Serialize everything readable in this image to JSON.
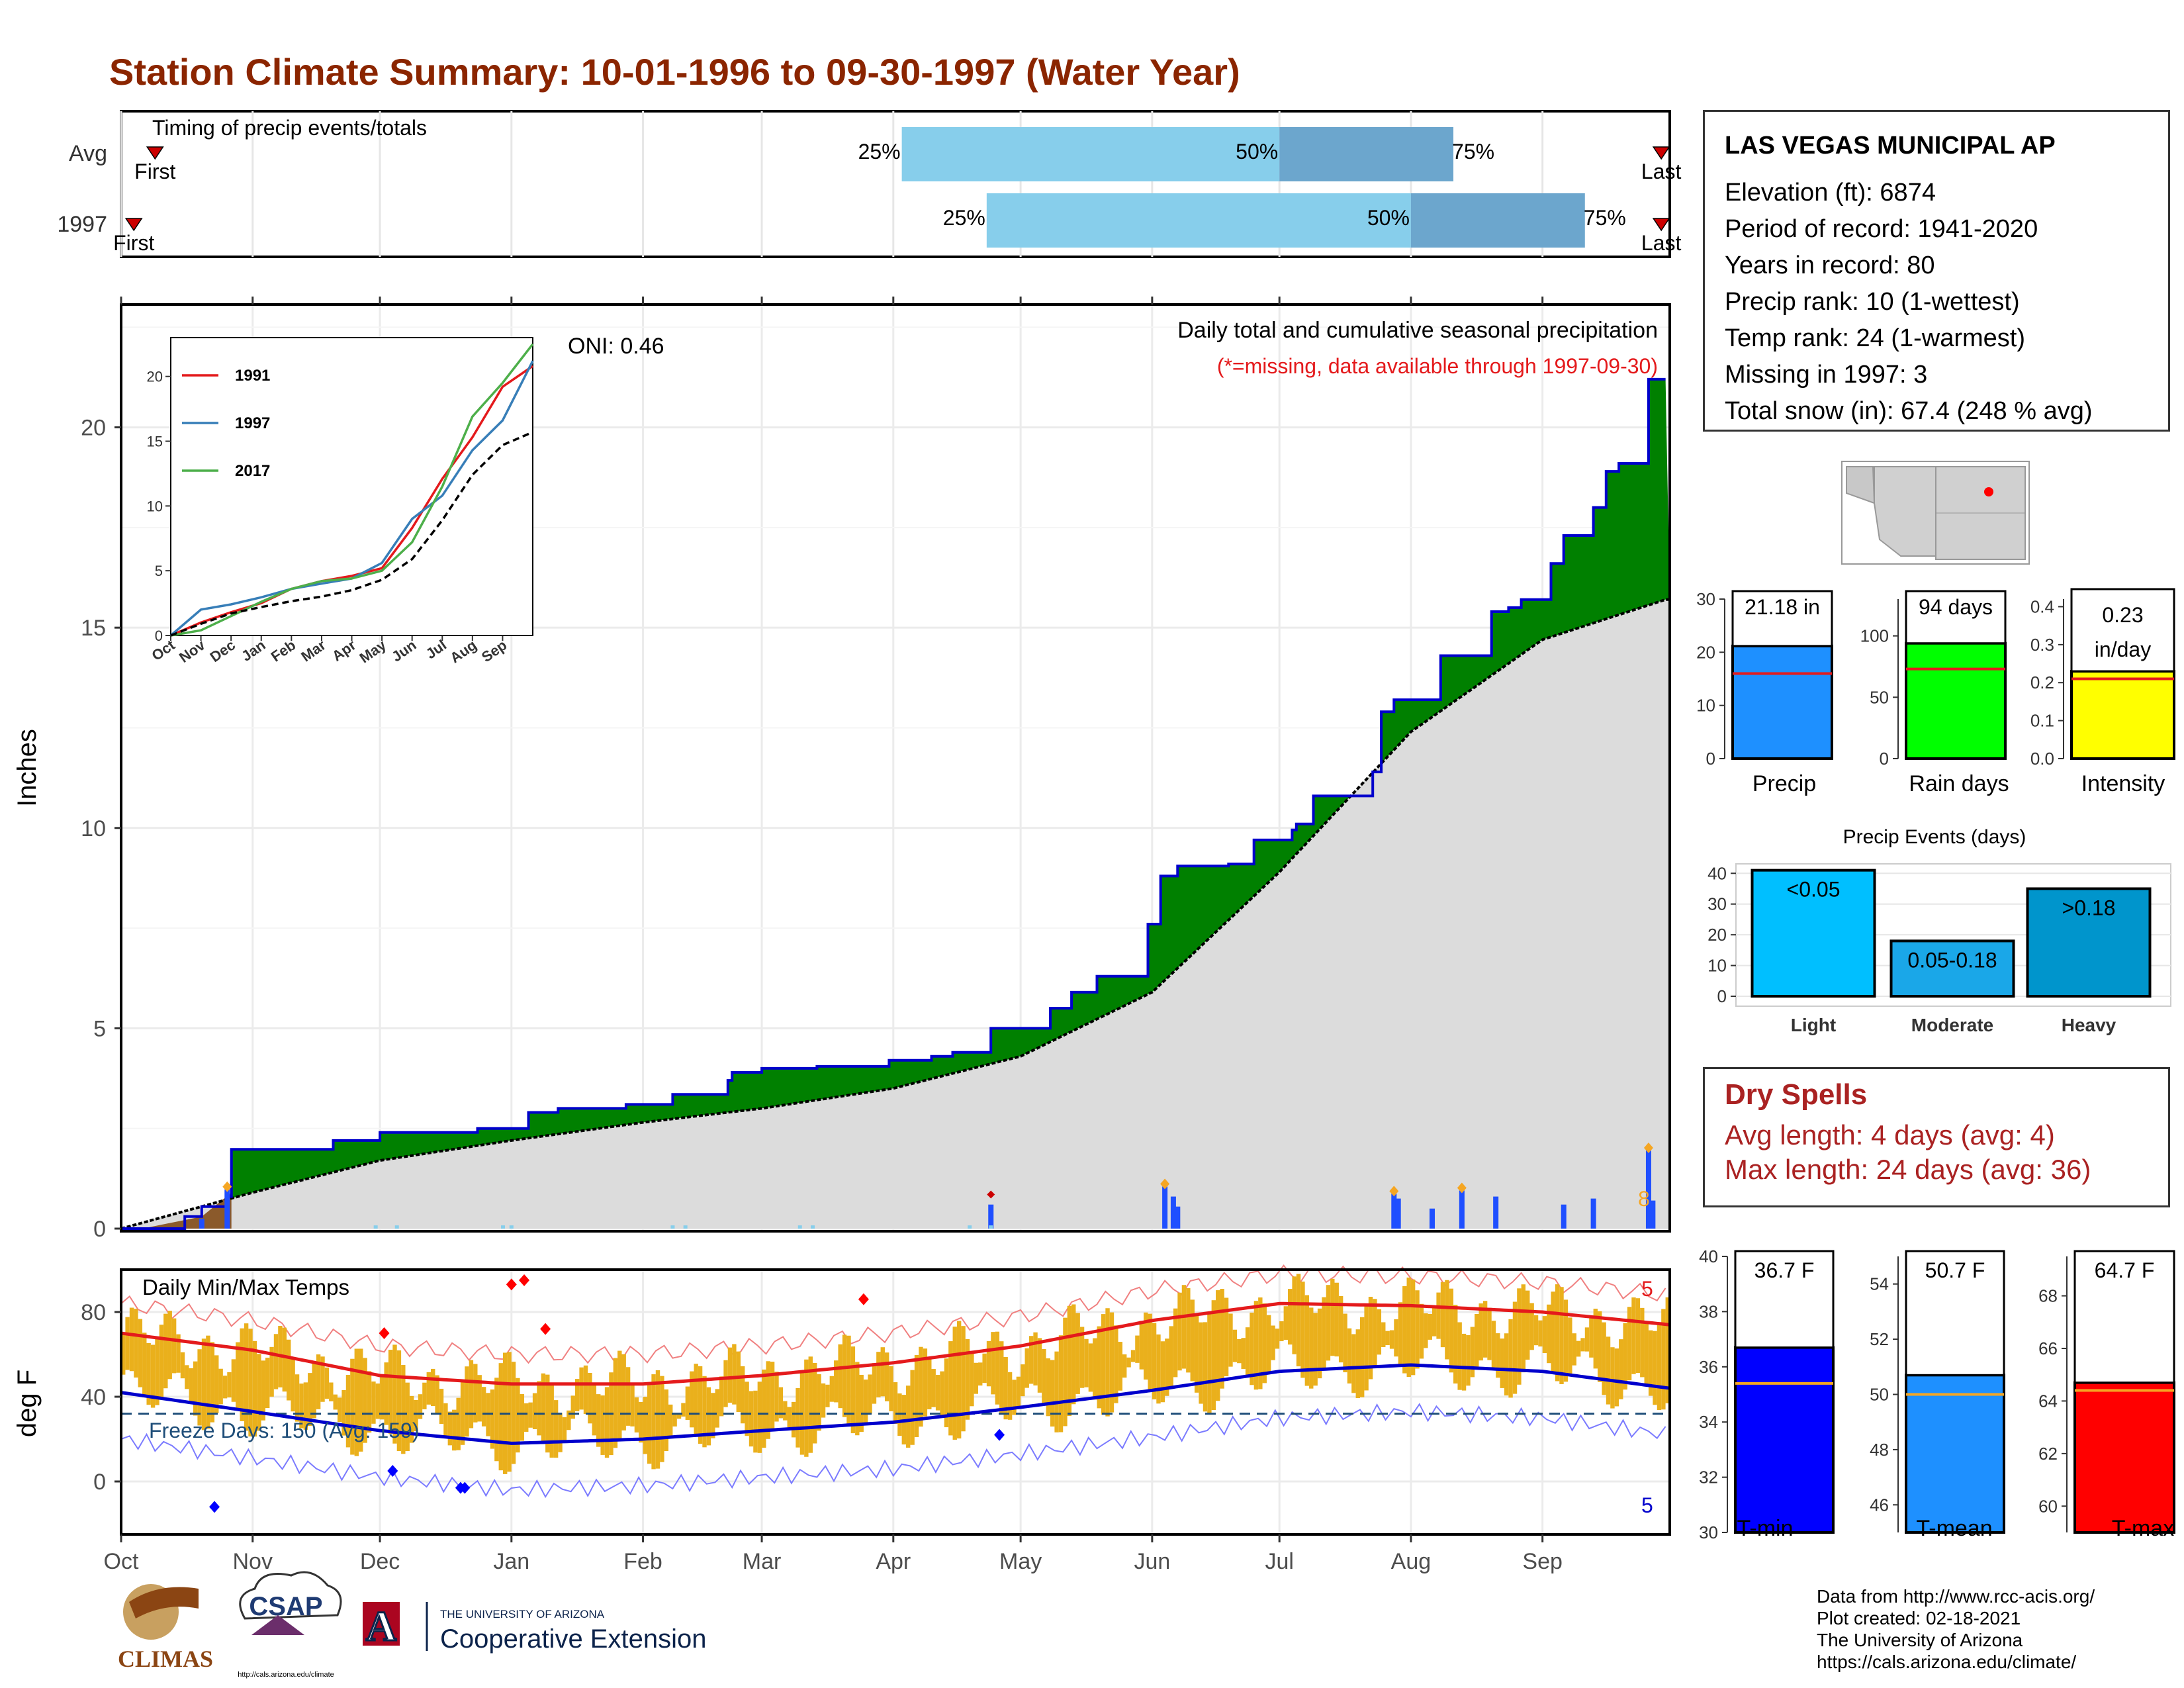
{
  "title": "Station Climate Summary: 10-01-1996 to 09-30-1997 (Water Year)",
  "colors": {
    "title": "#8B2500",
    "cum_obs_fill": "#008000",
    "cum_obs_line": "#0000CC",
    "cum_avg_fill": "#DCDCDC",
    "precip_bar": "#1f4fff",
    "temp_bar": "#EAB01C",
    "avg_max": "#E41A1C",
    "avg_min": "#0000CC",
    "pct_light": "#87CEEB",
    "pct_dark": "#6CA6CD"
  },
  "timing": {
    "title": "Timing of precip events/totals",
    "rows": [
      {
        "label": "Avg",
        "first": "First",
        "last": "Last",
        "p25": "25%",
        "p50": "50%",
        "p75": "75%"
      },
      {
        "label": "1997",
        "first": "First",
        "last": "Last",
        "p25": "25%",
        "p50": "50%",
        "p75": "75%"
      }
    ]
  },
  "precip_panel": {
    "ylabel": "Inches",
    "oni": "ONI: 0.46",
    "heading": "Daily total and cumulative seasonal precipitation",
    "note": "(*=missing, data available through 1997-09-30)",
    "count_label": "8",
    "yticks": [
      "0",
      "5",
      "10",
      "15",
      "20"
    ]
  },
  "inset": {
    "legend": [
      "1991",
      "1997",
      "2017"
    ],
    "legend_colors": [
      "#E41A1C",
      "#377EB8",
      "#4DAF4A"
    ],
    "yticks": [
      "0",
      "5",
      "10",
      "15",
      "20"
    ],
    "xticks": [
      "Oct",
      "Nov",
      "Dec",
      "Jan",
      "Feb",
      "Mar",
      "Apr",
      "May",
      "Jun",
      "Jul",
      "Aug",
      "Sep"
    ]
  },
  "temp_panel": {
    "ylabel": "deg F",
    "heading": "Daily Min/Max Temps",
    "freeze": "Freeze Days: 150 (Avg: 159)",
    "max_count": "5",
    "min_count": "5",
    "yticks": [
      "0",
      "40",
      "80"
    ]
  },
  "months": [
    "Oct",
    "Nov",
    "Dec",
    "Jan",
    "Feb",
    "Mar",
    "Apr",
    "May",
    "Jun",
    "Jul",
    "Aug",
    "Sep"
  ],
  "station": {
    "name": "LAS VEGAS MUNICIPAL AP",
    "rows": [
      "Elevation (ft): 6874",
      "Period of record: 1941-2020",
      "Years in record: 80",
      "Precip rank: 10 (1-wettest)",
      "Temp rank: 24 (1-warmest)",
      "Missing in 1997: 3",
      "Total snow (in): 67.4 (248 % avg)"
    ]
  },
  "mini_bars": {
    "precip": {
      "label": "Precip",
      "value_text": "21.18 in",
      "ticks": [
        "0",
        "10",
        "20",
        "30"
      ]
    },
    "rain_days": {
      "label": "Rain days",
      "value_text": "94 days",
      "ticks": [
        "0",
        "50",
        "100"
      ]
    },
    "intensity": {
      "label": "Intensity",
      "value_text_1": "0.23",
      "value_text_2": "in/day",
      "ticks": [
        "0.0",
        "0.1",
        "0.2",
        "0.3",
        "0.4"
      ]
    }
  },
  "events": {
    "title": "Precip Events (days)",
    "ticks": [
      "0",
      "10",
      "20",
      "30",
      "40"
    ],
    "categories": [
      "Light",
      "Moderate",
      "Heavy"
    ],
    "bar_labels": [
      "<0.05",
      "0.05-0.18",
      ">0.18"
    ]
  },
  "dry_spells": {
    "title": "Dry Spells",
    "avg": "Avg length: 4 days (avg: 4)",
    "max": "Max length: 24 days (avg: 36)"
  },
  "temp_bars": {
    "tmin": {
      "label": "T-min",
      "value_text": "36.7 F",
      "ticks": [
        "30",
        "32",
        "34",
        "36",
        "38",
        "40"
      ]
    },
    "tmean": {
      "label": "T-mean",
      "value_text": "50.7 F",
      "ticks": [
        "46",
        "48",
        "50",
        "52",
        "54"
      ]
    },
    "tmax": {
      "label": "T-max",
      "value_text": "64.7 F",
      "ticks": [
        "60",
        "62",
        "64",
        "66",
        "68"
      ]
    }
  },
  "credits": [
    "Data from http://www.rcc-acis.org/",
    "Plot created: 02-18-2021",
    "The University of Arizona",
    "https://cals.arizona.edu/climate/"
  ],
  "logos": {
    "climas": "CLIMAS",
    "csap": "CSAP",
    "csap_url": "http://cals.arizona.edu/climate",
    "ua_small": "THE UNIVERSITY OF ARIZONA",
    "ua_big": "Cooperative Extension",
    "ua_letter": "A"
  },
  "chart_data": [
    {
      "type": "bar",
      "name": "timing",
      "categories": [
        "Avg",
        "1997"
      ],
      "series": [
        {
          "name": "25%",
          "values": [
            "1997-04-03",
            "1997-04-23"
          ]
        },
        {
          "name": "50%",
          "values": [
            "1997-07-01",
            "1997-08-01"
          ]
        },
        {
          "name": "75%",
          "values": [
            "1997-08-11",
            "1997-09-11"
          ]
        }
      ],
      "first": [
        "1996-10-09",
        "1996-10-04"
      ],
      "last": [
        "1997-09-29",
        "1997-09-29"
      ]
    },
    {
      "type": "area",
      "title": "Daily total and cumulative seasonal precipitation",
      "ylabel": "Inches",
      "ylim": [
        0,
        23
      ],
      "xlim": [
        "1996-10-01",
        "1997-09-30"
      ],
      "series": [
        {
          "name": "cumulative observed",
          "x": [
            "1996-10-01",
            "1996-10-16",
            "1996-10-20",
            "1996-10-26",
            "1996-10-27",
            "1996-11-20",
            "1996-12-01",
            "1996-12-24",
            "1997-01-05",
            "1997-01-12",
            "1997-01-28",
            "1997-02-08",
            "1997-02-21",
            "1997-02-22",
            "1997-03-01",
            "1997-03-14",
            "1997-03-31",
            "1997-04-10",
            "1997-04-15",
            "1997-04-24",
            "1997-05-08",
            "1997-05-13",
            "1997-05-19",
            "1997-05-31",
            "1997-06-03",
            "1997-06-07",
            "1997-06-19",
            "1997-06-25",
            "1997-07-04",
            "1997-07-05",
            "1997-07-09",
            "1997-07-23",
            "1997-07-25",
            "1997-07-28",
            "1997-08-08",
            "1997-08-20",
            "1997-08-24",
            "1997-08-27",
            "1997-09-03",
            "1997-09-06",
            "1997-09-13",
            "1997-09-16",
            "1997-09-19",
            "1997-09-26",
            "1997-09-30"
          ],
          "values": [
            0,
            0.3,
            0.55,
            0.8,
            1.98,
            2.2,
            2.4,
            2.5,
            2.9,
            3.0,
            3.1,
            3.35,
            3.7,
            3.9,
            4.0,
            4.05,
            4.2,
            4.3,
            4.4,
            5.0,
            5.5,
            5.9,
            6.3,
            7.6,
            8.8,
            9.05,
            9.1,
            9.7,
            9.95,
            10.1,
            10.8,
            11.4,
            12.9,
            13.2,
            14.3,
            15.4,
            15.5,
            15.7,
            16.6,
            17.3,
            18.0,
            18.9,
            19.1,
            21.2,
            21.2
          ]
        },
        {
          "name": "average cumulative",
          "x": [
            "1996-10-01",
            "1996-11-01",
            "1996-12-01",
            "1997-01-01",
            "1997-02-01",
            "1997-03-01",
            "1997-04-01",
            "1997-05-01",
            "1997-06-01",
            "1997-07-01",
            "1997-08-01",
            "1997-09-01",
            "1997-09-30"
          ],
          "values": [
            0,
            0.9,
            1.7,
            2.2,
            2.65,
            3.0,
            3.5,
            4.3,
            5.9,
            8.9,
            12.4,
            14.7,
            15.7
          ]
        }
      ],
      "daily_precip": {
        "x": [
          "1996-10-20",
          "1996-10-26",
          "1997-04-24",
          "1997-06-04",
          "1997-06-06",
          "1997-06-07",
          "1997-07-28",
          "1997-07-29",
          "1997-08-06",
          "1997-08-13",
          "1997-08-21",
          "1997-09-06",
          "1997-09-13",
          "1997-09-26",
          "1997-09-27"
        ],
        "values": [
          0.25,
          0.98,
          0.6,
          1.05,
          0.8,
          0.55,
          0.87,
          0.75,
          0.5,
          0.95,
          0.8,
          0.6,
          0.75,
          1.95,
          0.7
        ]
      }
    },
    {
      "type": "line",
      "name": "inset cumulative comparison",
      "ylim": [
        0,
        23
      ],
      "series": [
        {
          "name": "1991",
          "x": [
            "Oct",
            "Nov",
            "Dec",
            "Jan",
            "Feb",
            "Mar",
            "Apr",
            "May",
            "Jun",
            "Jul",
            "Aug",
            "Sep",
            "end"
          ],
          "values": [
            0,
            1.0,
            1.8,
            2.5,
            3.6,
            4.2,
            4.6,
            5.2,
            8.3,
            12.1,
            15.3,
            19.2,
            20.8
          ]
        },
        {
          "name": "1997",
          "x": [
            "Oct",
            "Nov",
            "Dec",
            "Jan",
            "Feb",
            "Mar",
            "Apr",
            "May",
            "Jun",
            "Jul",
            "Aug",
            "Sep",
            "end"
          ],
          "values": [
            0,
            2.0,
            2.4,
            2.95,
            3.6,
            4.0,
            4.4,
            5.6,
            9.0,
            10.8,
            14.3,
            16.6,
            21.2
          ]
        },
        {
          "name": "2017",
          "x": [
            "Oct",
            "Nov",
            "Dec",
            "Jan",
            "Feb",
            "Mar",
            "Apr",
            "May",
            "Jun",
            "Jul",
            "Aug",
            "Sep",
            "end"
          ],
          "values": [
            0,
            0.4,
            1.5,
            2.6,
            3.6,
            4.2,
            4.4,
            5.0,
            7.2,
            11.5,
            16.9,
            19.5,
            22.5
          ]
        },
        {
          "name": "average",
          "x": [
            "Oct",
            "Nov",
            "Dec",
            "Jan",
            "Feb",
            "Mar",
            "Apr",
            "May",
            "Jun",
            "Jul",
            "Aug",
            "Sep",
            "end"
          ],
          "values": [
            0,
            0.9,
            1.7,
            2.2,
            2.65,
            3.0,
            3.5,
            4.3,
            5.9,
            8.9,
            12.4,
            14.7,
            15.7
          ]
        }
      ]
    },
    {
      "type": "bar",
      "title": "Daily Min/Max Temps",
      "ylabel": "deg F",
      "ylim": [
        -25,
        100
      ],
      "avg_max": {
        "x": [
          "Oct",
          "Nov",
          "Dec",
          "Jan",
          "Feb",
          "Mar",
          "Apr",
          "May",
          "Jun",
          "Jul",
          "Aug",
          "Sep",
          "end"
        ],
        "values": [
          70,
          62,
          50,
          46,
          46,
          50,
          56,
          64,
          76,
          84,
          83,
          80,
          74
        ]
      },
      "avg_min": {
        "x": [
          "Oct",
          "Nov",
          "Dec",
          "Jan",
          "Feb",
          "Mar",
          "Apr",
          "May",
          "Jun",
          "Jul",
          "Aug",
          "Sep",
          "end"
        ],
        "values": [
          42,
          33,
          24,
          18,
          20,
          24,
          28,
          35,
          43,
          52,
          55,
          52,
          44
        ]
      },
      "freeze_line": 32
    },
    {
      "type": "bar",
      "name": "seasonal totals",
      "categories": [
        "Precip",
        "Rain days",
        "Intensity"
      ],
      "values": [
        21.18,
        94,
        0.23
      ],
      "averages": [
        16.0,
        73,
        0.21
      ]
    },
    {
      "type": "bar",
      "title": "Precip Events (days)",
      "categories": [
        "Light",
        "Moderate",
        "Heavy"
      ],
      "values": [
        41,
        18,
        35
      ],
      "ylim": [
        0,
        42
      ]
    },
    {
      "type": "bar",
      "name": "seasonal temperatures",
      "categories": [
        "T-min",
        "T-mean",
        "T-max"
      ],
      "values": [
        36.7,
        50.7,
        64.7
      ],
      "averages": [
        35.4,
        50.0,
        64.4
      ]
    }
  ]
}
